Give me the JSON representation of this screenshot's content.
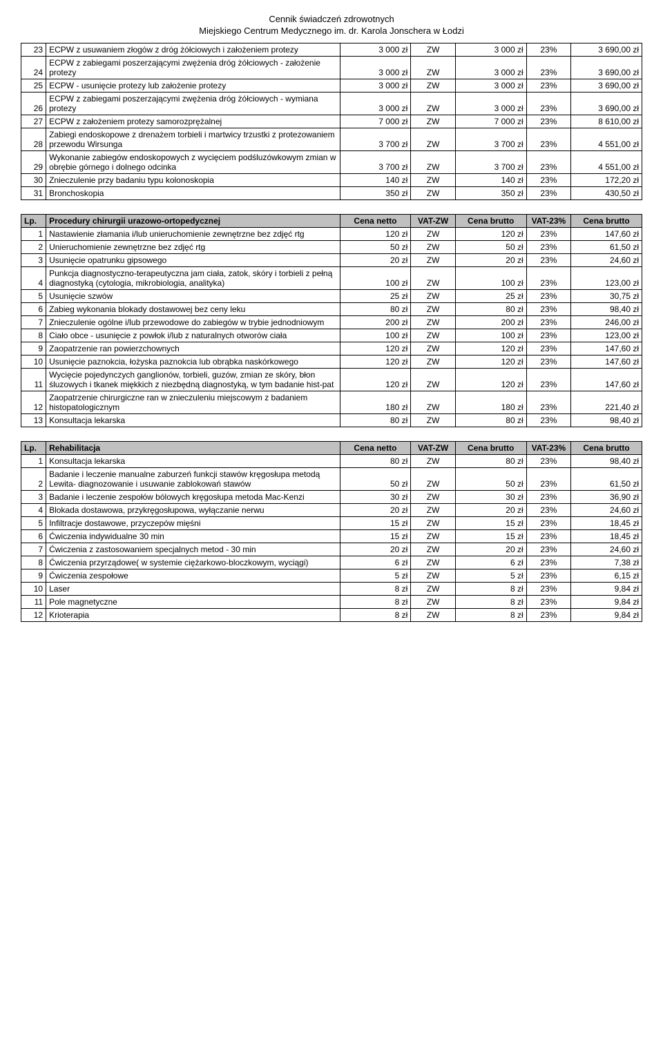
{
  "header": {
    "title": "Cennik świadczeń zdrowotnych",
    "subtitle": "Miejskiego Centrum Medycznego im. dr. Karola Jonschera w Łodzi"
  },
  "columns": {
    "lp": "Lp.",
    "cena_netto": "Cena netto",
    "vat_zw": "VAT-ZW",
    "cena_brutto": "Cena brutto",
    "vat_23": "VAT-23%",
    "cena_brutto2": "Cena brutto"
  },
  "section1": {
    "rows": [
      {
        "n": "23",
        "desc": "ECPW z usuwaniem złogów z dróg żółciowych i założeniem protezy",
        "netto": "3 000 zł",
        "zw": "ZW",
        "brutto": "3 000 zł",
        "pct": "23%",
        "brutto2": "3 690,00 zł"
      },
      {
        "n": "24",
        "desc": "ECPW z zabiegami poszerzającymi zwężenia dróg żółciowych - założenie protezy",
        "netto": "3 000 zł",
        "zw": "ZW",
        "brutto": "3 000 zł",
        "pct": "23%",
        "brutto2": "3 690,00 zł"
      },
      {
        "n": "25",
        "desc": "ECPW  - usunięcie protezy lub założenie protezy",
        "netto": "3 000 zł",
        "zw": "ZW",
        "brutto": "3 000 zł",
        "pct": "23%",
        "brutto2": "3 690,00 zł"
      },
      {
        "n": "26",
        "desc": "ECPW z zabiegami poszerzającymi zwężenia dróg żółciowych - wymiana protezy",
        "netto": "3 000 zł",
        "zw": "ZW",
        "brutto": "3 000 zł",
        "pct": "23%",
        "brutto2": "3 690,00 zł"
      },
      {
        "n": "27",
        "desc": "ECPW z założeniem protezy samorozprężalnej",
        "netto": "7 000 zł",
        "zw": "ZW",
        "brutto": "7 000 zł",
        "pct": "23%",
        "brutto2": "8 610,00 zł"
      },
      {
        "n": "28",
        "desc": "Zabiegi endoskopowe z drenażem torbieli i martwicy trzustki z protezowaniem przewodu Wirsunga",
        "netto": "3 700 zł",
        "zw": "ZW",
        "brutto": "3 700 zł",
        "pct": "23%",
        "brutto2": "4 551,00 zł"
      },
      {
        "n": "29",
        "desc": "Wykonanie zabiegów endoskopowych z wycięciem podśluzówkowym zmian w obrębie górnego i dolnego odcinka",
        "netto": "3 700 zł",
        "zw": "ZW",
        "brutto": "3 700 zł",
        "pct": "23%",
        "brutto2": "4 551,00 zł"
      },
      {
        "n": "30",
        "desc": "Znieczulenie przy badaniu typu kolonoskopia",
        "netto": "140 zł",
        "zw": "ZW",
        "brutto": "140 zł",
        "pct": "23%",
        "brutto2": "172,20 zł"
      },
      {
        "n": "31",
        "desc": "Bronchoskopia",
        "netto": "350 zł",
        "zw": "ZW",
        "brutto": "350 zł",
        "pct": "23%",
        "brutto2": "430,50 zł"
      }
    ]
  },
  "section2": {
    "title": "Procedury chirurgii urazowo-ortopedycznej",
    "rows": [
      {
        "n": "1",
        "desc": "Nastawienie złamania i/lub unieruchomienie zewnętrzne bez zdjęć rtg",
        "netto": "120 zł",
        "zw": "ZW",
        "brutto": "120 zł",
        "pct": "23%",
        "brutto2": "147,60 zł"
      },
      {
        "n": "2",
        "desc": "Unieruchomienie zewnętrzne bez zdjęć rtg",
        "netto": "50 zł",
        "zw": "ZW",
        "brutto": "50 zł",
        "pct": "23%",
        "brutto2": "61,50 zł"
      },
      {
        "n": "3",
        "desc": "Usunięcie opatrunku gipsowego",
        "netto": "20 zł",
        "zw": "ZW",
        "brutto": "20 zł",
        "pct": "23%",
        "brutto2": "24,60 zł"
      },
      {
        "n": "4",
        "desc": "Punkcja diagnostyczno-terapeutyczna jam ciała, zatok, skóry i torbieli z pełną diagnostyką (cytologia, mikrobiologia, analityka)",
        "netto": "100 zł",
        "zw": "ZW",
        "brutto": "100 zł",
        "pct": "23%",
        "brutto2": "123,00 zł"
      },
      {
        "n": "5",
        "desc": "Usunięcie szwów",
        "netto": "25 zł",
        "zw": "ZW",
        "brutto": "25 zł",
        "pct": "23%",
        "brutto2": "30,75 zł"
      },
      {
        "n": "6",
        "desc": "Zabieg wykonania blokady dostawowej bez ceny leku",
        "netto": "80 zł",
        "zw": "ZW",
        "brutto": "80 zł",
        "pct": "23%",
        "brutto2": "98,40 zł"
      },
      {
        "n": "7",
        "desc": "Znieczulenie ogólne i/lub przewodowe do zabiegów w trybie jednodniowym",
        "netto": "200 zł",
        "zw": "ZW",
        "brutto": "200 zł",
        "pct": "23%",
        "brutto2": "246,00 zł"
      },
      {
        "n": "8",
        "desc": "Ciało obce - usunięcie  z powłok i/lub z naturalnych otworów ciała",
        "netto": "100 zł",
        "zw": "ZW",
        "brutto": "100 zł",
        "pct": "23%",
        "brutto2": "123,00 zł"
      },
      {
        "n": "9",
        "desc": "Zaopatrzenie ran powierzchownych",
        "netto": "120 zł",
        "zw": "ZW",
        "brutto": "120 zł",
        "pct": "23%",
        "brutto2": "147,60 zł"
      },
      {
        "n": "10",
        "desc": "Usunięcie paznokcia, łożyska paznokcia lub obrąbka naskórkowego",
        "netto": "120 zł",
        "zw": "ZW",
        "brutto": "120 zł",
        "pct": "23%",
        "brutto2": "147,60 zł"
      },
      {
        "n": "11",
        "desc": "Wycięcie pojedynczych ganglionów, torbieli, guzów, zmian ze skóry, błon śluzowych i tkanek miękkich z niezbędną diagnostyką, w tym badanie hist-pat",
        "netto": "120 zł",
        "zw": "ZW",
        "brutto": "120 zł",
        "pct": "23%",
        "brutto2": "147,60 zł"
      },
      {
        "n": "12",
        "desc": "Zaopatrzenie chirurgiczne ran w znieczuleniu miejscowym z badaniem histopatologicznym",
        "netto": "180 zł",
        "zw": "ZW",
        "brutto": "180 zł",
        "pct": "23%",
        "brutto2": "221,40 zł"
      },
      {
        "n": "13",
        "desc": "Konsultacja lekarska",
        "netto": "80 zł",
        "zw": "ZW",
        "brutto": "80 zł",
        "pct": "23%",
        "brutto2": "98,40 zł"
      }
    ]
  },
  "section3": {
    "title": "Rehabilitacja",
    "rows": [
      {
        "n": "1",
        "desc": "Konsultacja lekarska",
        "netto": "80 zł",
        "zw": "ZW",
        "brutto": "80 zł",
        "pct": "23%",
        "brutto2": "98,40 zł"
      },
      {
        "n": "2",
        "desc": "Badanie i leczenie manualne zaburzeń funkcji stawów kręgosłupa metodą Lewita- diagnozowanie i usuwanie zablokowań stawów",
        "netto": "50 zł",
        "zw": "ZW",
        "brutto": "50 zł",
        "pct": "23%",
        "brutto2": "61,50 zł"
      },
      {
        "n": "3",
        "desc": "Badanie i leczenie zespołów bólowych kręgosłupa metoda Mac-Kenzi",
        "netto": "30 zł",
        "zw": "ZW",
        "brutto": "30 zł",
        "pct": "23%",
        "brutto2": "36,90 zł"
      },
      {
        "n": "4",
        "desc": "Blokada dostawowa, przykręgosłupowa, wyłączanie nerwu",
        "netto": "20 zł",
        "zw": "ZW",
        "brutto": "20 zł",
        "pct": "23%",
        "brutto2": "24,60 zł"
      },
      {
        "n": "5",
        "desc": "Infiltracje dostawowe, przyczepów mięśni",
        "netto": "15 zł",
        "zw": "ZW",
        "brutto": "15 zł",
        "pct": "23%",
        "brutto2": "18,45 zł"
      },
      {
        "n": "6",
        "desc": "Ćwiczenia indywidualne 30 min",
        "netto": "15 zł",
        "zw": "ZW",
        "brutto": "15 zł",
        "pct": "23%",
        "brutto2": "18,45 zł"
      },
      {
        "n": "7",
        "desc": "Ćwiczenia z zastosowaniem specjalnych metod - 30 min",
        "netto": "20 zł",
        "zw": "ZW",
        "brutto": "20 zł",
        "pct": "23%",
        "brutto2": "24,60 zł"
      },
      {
        "n": "8",
        "desc": "Ćwiczenia przyrządowe( w systemie ciężarkowo-bloczkowym, wyciągi)",
        "netto": "6 zł",
        "zw": "ZW",
        "brutto": "6 zł",
        "pct": "23%",
        "brutto2": "7,38 zł"
      },
      {
        "n": "9",
        "desc": "Ćwiczenia zespołowe",
        "netto": "5 zł",
        "zw": "ZW",
        "brutto": "5 zł",
        "pct": "23%",
        "brutto2": "6,15 zł"
      },
      {
        "n": "10",
        "desc": "Laser",
        "netto": "8 zł",
        "zw": "ZW",
        "brutto": "8 zł",
        "pct": "23%",
        "brutto2": "9,84 zł"
      },
      {
        "n": "11",
        "desc": "Pole magnetyczne",
        "netto": "8 zł",
        "zw": "ZW",
        "brutto": "8 zł",
        "pct": "23%",
        "brutto2": "9,84 zł"
      },
      {
        "n": "12",
        "desc": "Krioterapia",
        "netto": "8 zł",
        "zw": "ZW",
        "brutto": "8 zł",
        "pct": "23%",
        "brutto2": "9,84 zł"
      }
    ]
  }
}
